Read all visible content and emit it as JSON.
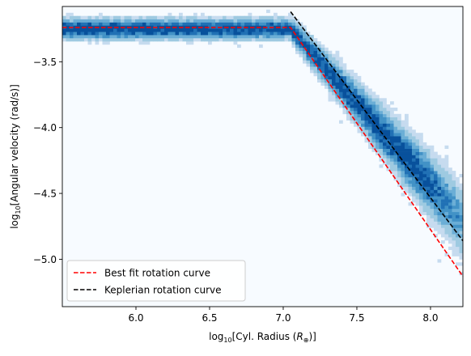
{
  "chart_data": {
    "type": "heatmap",
    "title": "",
    "xlabel": {
      "prefix": "log",
      "sub": "10",
      "body": "[Cyl. Radius (",
      "sym": "R",
      "symsub": "⊕",
      "suffix": ")]"
    },
    "ylabel": {
      "prefix": "log",
      "sub": "10",
      "body": "[Angular velocity (rad/s)]"
    },
    "xlim": [
      5.5,
      8.22
    ],
    "ylim": [
      -5.36,
      -3.08
    ],
    "xticks": [
      6.0,
      6.5,
      7.0,
      7.5,
      8.0
    ],
    "xtick_labels": [
      "6.0",
      "6.5",
      "7.0",
      "7.5",
      "8.0"
    ],
    "yticks": [
      -3.5,
      -4.0,
      -4.5,
      -5.0
    ],
    "ytick_labels": [
      "−3.5",
      "−4.0",
      "−4.5",
      "−5.0"
    ],
    "grid": false,
    "legend_position": "lower-left",
    "background_color": "#f7fbff",
    "colormap": [
      "#c6dbef",
      "#9ecae1",
      "#6baed6",
      "#4292c6",
      "#2171b5",
      "#08519c"
    ],
    "histogram_model": {
      "plateau_y": -3.25,
      "break_x": 7.05,
      "slope": -1.25
    },
    "series": [
      {
        "name": "Best fit rotation curve",
        "color": "#ff0000",
        "style": "dashed",
        "x": [
          5.5,
          7.05,
          8.22
        ],
        "y": [
          -3.24,
          -3.24,
          -5.13
        ]
      },
      {
        "name": "Keplerian rotation curve",
        "color": "#000000",
        "style": "dashed",
        "x": [
          7.05,
          8.22
        ],
        "y": [
          -3.12,
          -4.86
        ]
      }
    ]
  }
}
